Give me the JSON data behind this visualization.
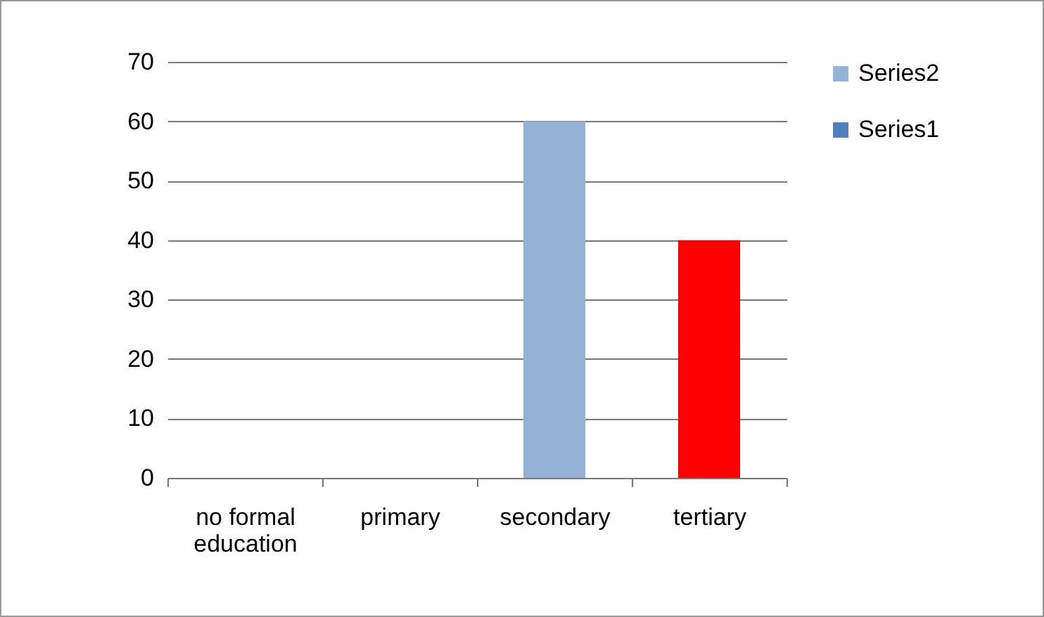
{
  "chart_data": {
    "type": "bar",
    "stacked": true,
    "categories": [
      "no formal education",
      "primary",
      "secondary",
      "tertiary"
    ],
    "series": [
      {
        "name": "Series2",
        "color": "#95b3d7",
        "values": [
          null,
          null,
          60,
          40
        ],
        "colors": [
          "#95b3d7",
          "#95b3d7",
          "#95b3d7",
          "#ff0000"
        ]
      },
      {
        "name": "Series1",
        "color": "#4f81bd",
        "values": [
          null,
          null,
          null,
          null
        ]
      }
    ],
    "ylim": [
      0,
      70
    ],
    "yticks": [
      0,
      10,
      20,
      30,
      40,
      50,
      60,
      70
    ],
    "grid": "y",
    "legend": "right"
  }
}
